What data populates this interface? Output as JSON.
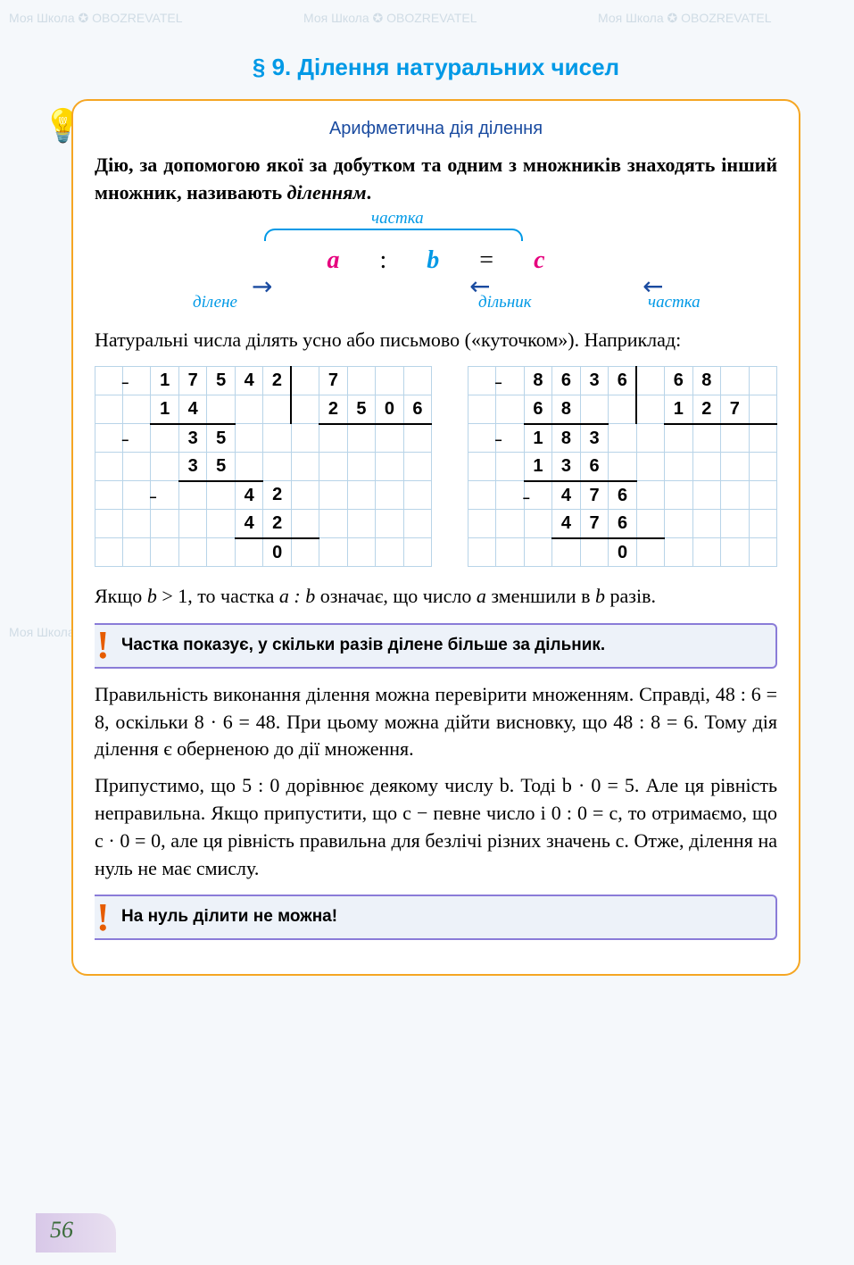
{
  "watermark_text": "Моя Школа ✪ OBOZREVATEL",
  "title": "§ 9. Ділення натуральних чисел",
  "subtitle": "Арифметична дія ділення",
  "definition_parts": {
    "p1": "Дію, за допомогою якої за добутком та одним з множників знаходять інший множник, називають ",
    "p2": "діленням",
    "p3": "."
  },
  "eq_labels": {
    "brace_top": "частка",
    "dividend": "ділене",
    "divisor": "дільник",
    "quotient": "частка"
  },
  "eq_vars": {
    "a": "a",
    "b": "b",
    "c": "c",
    "colon": ":",
    "equals": "="
  },
  "para1": "Натуральні числа ділять усно або письмово («куточком»). Наприклад:",
  "division1": {
    "rows": [
      [
        "",
        "−",
        "1",
        "7",
        "5",
        "4",
        "2",
        "",
        "7",
        "",
        "",
        ""
      ],
      [
        "",
        "",
        "1",
        "4",
        "",
        "",
        "",
        "",
        "2",
        "5",
        "0",
        "6"
      ],
      [
        "",
        "−",
        "",
        "3",
        "5",
        "",
        "",
        "",
        "",
        "",
        "",
        ""
      ],
      [
        "",
        "",
        "",
        "3",
        "5",
        "",
        "",
        "",
        "",
        "",
        "",
        ""
      ],
      [
        "",
        "",
        "−",
        "",
        "",
        "4",
        "2",
        "",
        "",
        "",
        "",
        ""
      ],
      [
        "",
        "",
        "",
        "",
        "",
        "4",
        "2",
        "",
        "",
        "",
        "",
        ""
      ],
      [
        "",
        "",
        "",
        "",
        "",
        "",
        "0",
        "",
        "",
        "",
        "",
        ""
      ]
    ],
    "vbar_col": 7,
    "hlines": [
      [
        1,
        2,
        4
      ],
      [
        1,
        8,
        12
      ],
      [
        3,
        3,
        5
      ],
      [
        5,
        5,
        7
      ]
    ]
  },
  "division2": {
    "rows": [
      [
        "",
        "−",
        "8",
        "6",
        "3",
        "6",
        "",
        "6",
        "8",
        "",
        ""
      ],
      [
        "",
        "",
        "6",
        "8",
        "",
        "",
        "",
        "1",
        "2",
        "7",
        ""
      ],
      [
        "",
        "−",
        "1",
        "8",
        "3",
        "",
        "",
        "",
        "",
        "",
        ""
      ],
      [
        "",
        "",
        "1",
        "3",
        "6",
        "",
        "",
        "",
        "",
        "",
        ""
      ],
      [
        "",
        "",
        "−",
        "4",
        "7",
        "6",
        "",
        "",
        "",
        "",
        ""
      ],
      [
        "",
        "",
        "",
        "4",
        "7",
        "6",
        "",
        "",
        "",
        "",
        ""
      ],
      [
        "",
        "",
        "",
        "",
        "",
        "0",
        "",
        "",
        "",
        "",
        ""
      ]
    ],
    "vbar_col": 6,
    "hlines": [
      [
        1,
        2,
        4
      ],
      [
        1,
        7,
        10
      ],
      [
        3,
        2,
        5
      ],
      [
        5,
        3,
        6
      ]
    ]
  },
  "para2_parts": [
    "Якщо ",
    "b",
    " > 1, то частка ",
    "a : b",
    " означає, що число ",
    "a",
    " зменшили в ",
    "b",
    " разів."
  ],
  "callout1": "Частка показує, у скільки разів ділене більше за дільник.",
  "para3": "Правильність виконання ділення можна перевірити множенням. Справді, 48 : 6 = 8, оскільки 8 · 6 = 48. При цьому можна дійти висновку, що 48 : 8 = 6. Тому дія ділення є оберненою до дії множення.",
  "para4": "Припустимо, що 5 : 0 дорівнює деякому числу b. Тоді b · 0 = 5. Але ця рівність неправильна. Якщо припустити, що c − певне число і 0 : 0 = c, то отримаємо, що c · 0 = 0, але ця рівність правильна для безлічі різних значень c. Отже, ділення на нуль не має смислу.",
  "callout2": "На нуль ділити не можна!",
  "page_number": "56",
  "colors": {
    "title": "#0099e6",
    "accent_pink": "#e6007e",
    "accent_blue": "#0099e6",
    "border_orange": "#f5a623",
    "callout_border": "#8a7cd8",
    "callout_bg": "#edf2f9",
    "grid_line": "#b8d4e8",
    "bang": "#e65c00"
  }
}
